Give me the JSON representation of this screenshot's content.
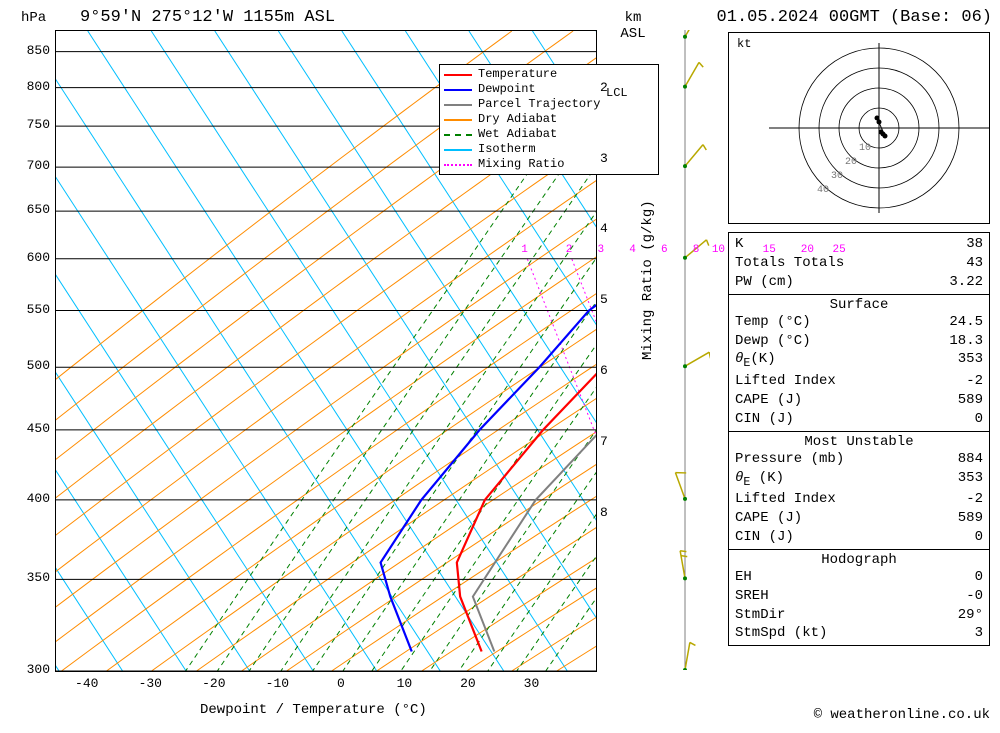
{
  "title_left": "9°59'N 275°12'W 1155m ASL",
  "title_right": "01.05.2024 00GMT (Base: 06)",
  "axes": {
    "left_label": "hPa",
    "right_label": "km\nASL",
    "right2_label": "Mixing Ratio (g/kg)",
    "x_label": "Dewpoint / Temperature (°C)",
    "hpa_ticks": [
      300,
      350,
      400,
      450,
      500,
      550,
      600,
      650,
      700,
      750,
      800,
      850
    ],
    "km_ticks": [
      2,
      3,
      4,
      5,
      6,
      7,
      8
    ],
    "x_ticks": [
      -40,
      -30,
      -20,
      -10,
      0,
      10,
      20,
      30
    ],
    "x_range": [
      -45,
      40
    ],
    "hpa_range": [
      880,
      300
    ]
  },
  "mixing_labels": [
    1,
    2,
    3,
    4,
    6,
    8,
    10,
    15,
    20,
    25
  ],
  "mixing_x": [
    -11,
    -4,
    1,
    6,
    11,
    16,
    19,
    27,
    33,
    38
  ],
  "lcl_label": "LCL",
  "kt_label": "kt",
  "legend": [
    {
      "label": "Temperature",
      "color": "#ff0000",
      "style": "solid"
    },
    {
      "label": "Dewpoint",
      "color": "#0000ff",
      "style": "solid"
    },
    {
      "label": "Parcel Trajectory",
      "color": "#808080",
      "style": "solid"
    },
    {
      "label": "Dry Adiabat",
      "color": "#ff8c00",
      "style": "solid"
    },
    {
      "label": "Wet Adiabat",
      "color": "#008000",
      "style": "dashed"
    },
    {
      "label": "Isotherm",
      "color": "#00bfff",
      "style": "solid"
    },
    {
      "label": "Mixing Ratio",
      "color": "#ff00ff",
      "style": "dotted"
    }
  ],
  "colors": {
    "temperature": "#ff0000",
    "dewpoint": "#0000ff",
    "parcel": "#808080",
    "dry_adiabat": "#ff8c00",
    "wet_adiabat": "#008000",
    "isotherm": "#00bfff",
    "mixing": "#ff00ff",
    "grid": "#000000",
    "barb": "#b8a800",
    "hodo_dot": "#008000"
  },
  "temperature_profile": [
    {
      "p": 870,
      "t": 24.5
    },
    {
      "p": 850,
      "t": 23
    },
    {
      "p": 800,
      "t": 21
    },
    {
      "p": 750,
      "t": 20
    },
    {
      "p": 700,
      "t": 19
    },
    {
      "p": 650,
      "t": 19
    },
    {
      "p": 600,
      "t": 18
    },
    {
      "p": 550,
      "t": 15
    },
    {
      "p": 500,
      "t": 10
    },
    {
      "p": 450,
      "t": 7
    },
    {
      "p": 400,
      "t": 5
    },
    {
      "p": 360,
      "t": 7
    },
    {
      "p": 340,
      "t": 11
    },
    {
      "p": 310,
      "t": 20
    }
  ],
  "dewpoint_profile": [
    {
      "p": 870,
      "t": 18.3
    },
    {
      "p": 850,
      "t": 19
    },
    {
      "p": 800,
      "t": 19
    },
    {
      "p": 750,
      "t": 19
    },
    {
      "p": 700,
      "t": 18.5
    },
    {
      "p": 680,
      "t": 18
    },
    {
      "p": 650,
      "t": 12
    },
    {
      "p": 600,
      "t": 3
    },
    {
      "p": 575,
      "t": 5
    },
    {
      "p": 550,
      "t": 2
    },
    {
      "p": 500,
      "t": 0
    },
    {
      "p": 450,
      "t": -3
    },
    {
      "p": 400,
      "t": -5
    },
    {
      "p": 360,
      "t": -5
    },
    {
      "p": 340,
      "t": 0
    },
    {
      "p": 310,
      "t": 9
    }
  ],
  "parcel_profile": [
    {
      "p": 870,
      "t": 24.5
    },
    {
      "p": 780,
      "t": 21
    },
    {
      "p": 700,
      "t": 22
    },
    {
      "p": 600,
      "t": 22
    },
    {
      "p": 500,
      "t": 19
    },
    {
      "p": 400,
      "t": 13
    },
    {
      "p": 340,
      "t": 13
    },
    {
      "p": 310,
      "t": 22
    }
  ],
  "lcl_hpa": 792,
  "barbs": [
    {
      "p": 870,
      "dir": 30,
      "spd": 5
    },
    {
      "p": 800,
      "dir": 30,
      "spd": 3
    },
    {
      "p": 700,
      "dir": 40,
      "spd": 5
    },
    {
      "p": 600,
      "dir": 50,
      "spd": 5
    },
    {
      "p": 500,
      "dir": 60,
      "spd": 5
    },
    {
      "p": 400,
      "dir": 340,
      "spd": 10
    },
    {
      "p": 350,
      "dir": 350,
      "spd": 8
    },
    {
      "p": 300,
      "dir": 10,
      "spd": 5
    }
  ],
  "hodograph": {
    "rings": [
      10,
      20,
      30,
      40
    ],
    "points": [
      {
        "u": 2,
        "v": -3
      },
      {
        "u": 1,
        "v": -2
      },
      {
        "u": 3,
        "v": -4
      },
      {
        "u": -1,
        "v": 5
      },
      {
        "u": 0,
        "v": 3
      }
    ]
  },
  "tables": {
    "top": [
      {
        "k": "K",
        "v": "38"
      },
      {
        "k": "Totals Totals",
        "v": "43"
      },
      {
        "k": "PW (cm)",
        "v": "3.22"
      }
    ],
    "surface_head": "Surface",
    "surface": [
      {
        "k": "Temp (°C)",
        "v": "24.5"
      },
      {
        "k": "Dewp (°C)",
        "v": "18.3"
      },
      {
        "k": "θE(K)",
        "v": "353",
        "theta": true
      },
      {
        "k": "Lifted Index",
        "v": "-2"
      },
      {
        "k": "CAPE (J)",
        "v": "589"
      },
      {
        "k": "CIN (J)",
        "v": "0"
      }
    ],
    "mu_head": "Most Unstable",
    "mu": [
      {
        "k": "Pressure (mb)",
        "v": "884"
      },
      {
        "k": "θE (K)",
        "v": "353",
        "theta": true
      },
      {
        "k": "Lifted Index",
        "v": "-2"
      },
      {
        "k": "CAPE (J)",
        "v": "589"
      },
      {
        "k": "CIN (J)",
        "v": "0"
      }
    ],
    "hodo_head": "Hodograph",
    "hodo": [
      {
        "k": "EH",
        "v": "0"
      },
      {
        "k": "SREH",
        "v": "-0"
      },
      {
        "k": "StmDir",
        "v": "29°"
      },
      {
        "k": "StmSpd (kt)",
        "v": "3"
      }
    ]
  },
  "copyright": "© weatheronline.co.uk"
}
